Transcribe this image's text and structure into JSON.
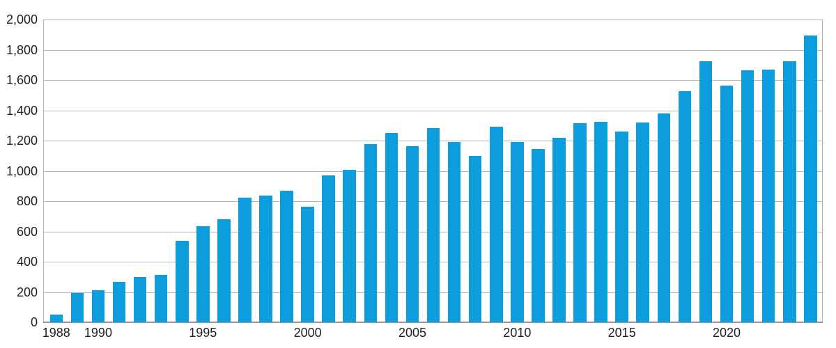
{
  "chart_data": {
    "type": "bar",
    "title": "",
    "xlabel": "",
    "ylabel": "",
    "x": [
      1988,
      1989,
      1990,
      1991,
      1992,
      1993,
      1994,
      1995,
      1996,
      1997,
      1998,
      1999,
      2000,
      2001,
      2002,
      2003,
      2004,
      2005,
      2006,
      2007,
      2008,
      2009,
      2010,
      2011,
      2012,
      2013,
      2014,
      2015,
      2016,
      2017,
      2018,
      2019,
      2020,
      2021,
      2022,
      2023,
      2024
    ],
    "values": [
      50,
      195,
      210,
      265,
      300,
      315,
      540,
      635,
      680,
      825,
      835,
      870,
      765,
      970,
      1005,
      1175,
      1250,
      1165,
      1285,
      1190,
      1100,
      1290,
      1190,
      1145,
      1220,
      1315,
      1325,
      1260,
      1320,
      1380,
      1525,
      1725,
      1565,
      1665,
      1670,
      1725,
      1895
    ],
    "ylim": [
      0,
      2000
    ],
    "y_tick_interval": 200,
    "y_tick_labels": [
      "0",
      "200",
      "400",
      "600",
      "800",
      "1,000",
      "1,200",
      "1,400",
      "1,600",
      "1,800",
      "2,000"
    ],
    "x_tick_years": [
      "1988",
      "1990",
      "1995",
      "2000",
      "2005",
      "2010",
      "2015",
      "2020"
    ],
    "grid": true,
    "legend": "none",
    "bar_color": "#0e9ddc",
    "grid_color": "#b5b6b8",
    "axis_line_color": "#97989b",
    "text_color": "#231f20"
  }
}
